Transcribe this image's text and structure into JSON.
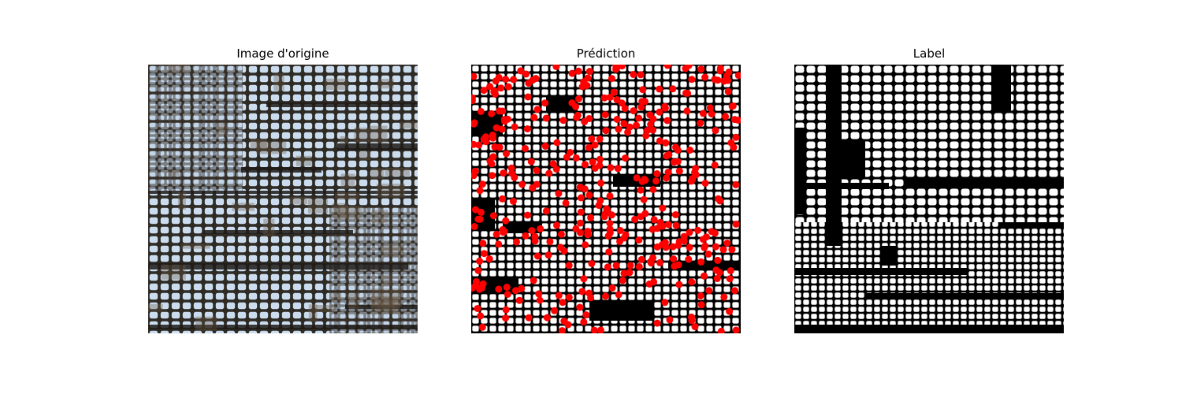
{
  "figure": {
    "panels": [
      {
        "title": "Image d'origine"
      },
      {
        "title": "Prédiction"
      },
      {
        "title": "Label"
      }
    ]
  },
  "colors": {
    "background": "#ffffff",
    "original_cell_fill": "#c9daec",
    "original_wall": "#2a2620",
    "original_wall_brown": "#5a4a36",
    "mask_foreground": "#ffffff",
    "mask_background": "#000000",
    "prediction_marker": "#ff0000"
  }
}
